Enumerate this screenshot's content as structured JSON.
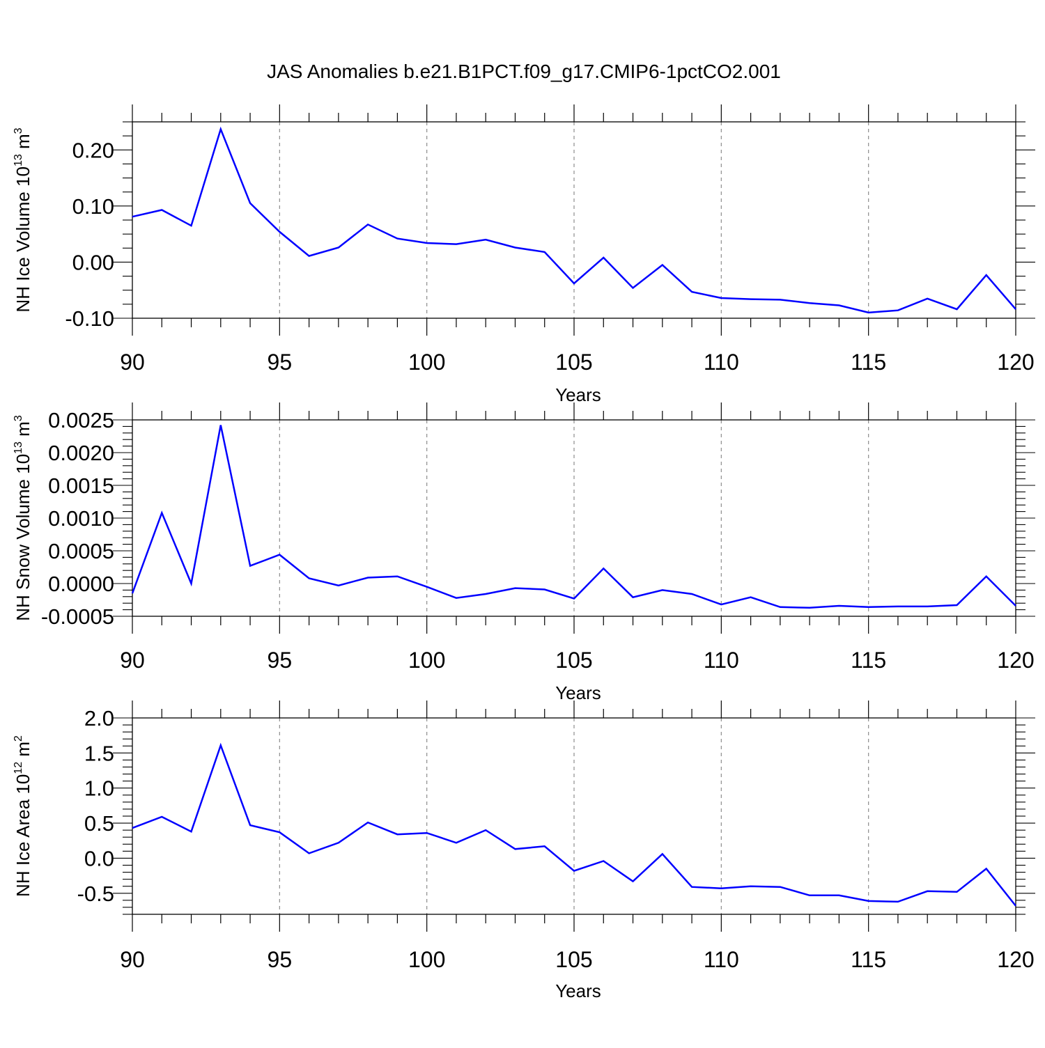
{
  "title": "JAS Anomalies b.e21.B1PCT.f09_g17.CMIP6-1pctCO2.001",
  "line_color": "#0000ff",
  "chart_data": [
    {
      "type": "line",
      "ylabel": "NH Ice Volume 10",
      "ylabel_sup": "13",
      "ylabel_unit": " m",
      "ylabel_unit_sup": "3",
      "xlabel": "Years",
      "xlim": [
        90,
        120
      ],
      "ylim": [
        -0.1,
        0.25
      ],
      "grid": "vertical-dashed",
      "x_ticks": [
        "90",
        "95",
        "100",
        "105",
        "110",
        "115",
        "120"
      ],
      "y_ticks": [
        "-0.10",
        "0.00",
        "0.10",
        "0.20"
      ],
      "x": [
        90,
        91,
        92,
        93,
        94,
        95,
        96,
        97,
        98,
        99,
        100,
        101,
        102,
        103,
        104,
        105,
        106,
        107,
        108,
        109,
        110,
        111,
        112,
        113,
        114,
        115,
        116,
        117,
        118,
        119,
        120
      ],
      "series": [
        {
          "values": [
            0.081,
            0.093,
            0.065,
            0.237,
            0.105,
            0.054,
            0.011,
            0.026,
            0.067,
            0.042,
            0.034,
            0.032,
            0.04,
            0.026,
            0.018,
            -0.038,
            0.008,
            -0.046,
            -0.005,
            -0.053,
            -0.064,
            -0.066,
            -0.067,
            -0.073,
            -0.077,
            -0.09,
            -0.086,
            -0.065,
            -0.084,
            -0.023,
            -0.084
          ]
        }
      ]
    },
    {
      "type": "line",
      "ylabel": "NH Snow Volume 10",
      "ylabel_sup": "13",
      "ylabel_unit": " m",
      "ylabel_unit_sup": "3",
      "xlabel": "Years",
      "xlim": [
        90,
        120
      ],
      "ylim": [
        -0.0005,
        0.0025
      ],
      "grid": "vertical-dashed",
      "x_ticks": [
        "90",
        "95",
        "100",
        "105",
        "110",
        "115",
        "120"
      ],
      "y_ticks": [
        "-0.0005",
        "0.0000",
        "0.0005",
        "0.0010",
        "0.0015",
        "0.0020",
        "0.0025"
      ],
      "x": [
        90,
        91,
        92,
        93,
        94,
        95,
        96,
        97,
        98,
        99,
        100,
        101,
        102,
        103,
        104,
        105,
        106,
        107,
        108,
        109,
        110,
        111,
        112,
        113,
        114,
        115,
        116,
        117,
        118,
        119,
        120
      ],
      "series": [
        {
          "values": [
            -0.00015,
            0.00108,
            0.0,
            0.00242,
            0.00027,
            0.00044,
            8e-05,
            -3e-05,
            9e-05,
            0.00011,
            -5e-05,
            -0.00022,
            -0.00016,
            -7e-05,
            -9e-05,
            -0.00023,
            0.00023,
            -0.00021,
            -0.0001,
            -0.00016,
            -0.00032,
            -0.00021,
            -0.00036,
            -0.00037,
            -0.00034,
            -0.00036,
            -0.00035,
            -0.00035,
            -0.00033,
            0.00011,
            -0.00034
          ]
        }
      ]
    },
    {
      "type": "line",
      "ylabel": "NH Ice Area 10",
      "ylabel_sup": "12",
      "ylabel_unit": " m",
      "ylabel_unit_sup": "2",
      "xlabel": "Years",
      "xlim": [
        90,
        120
      ],
      "ylim": [
        -0.8,
        2.0
      ],
      "grid": "vertical-dashed",
      "x_ticks": [
        "90",
        "95",
        "100",
        "105",
        "110",
        "115",
        "120"
      ],
      "y_ticks": [
        "-0.5",
        "0.0",
        "0.5",
        "1.0",
        "1.5",
        "2.0"
      ],
      "x": [
        90,
        91,
        92,
        93,
        94,
        95,
        96,
        97,
        98,
        99,
        100,
        101,
        102,
        103,
        104,
        105,
        106,
        107,
        108,
        109,
        110,
        111,
        112,
        113,
        114,
        115,
        116,
        117,
        118,
        119,
        120
      ],
      "series": [
        {
          "values": [
            0.43,
            0.59,
            0.38,
            1.61,
            0.47,
            0.37,
            0.07,
            0.22,
            0.51,
            0.34,
            0.36,
            0.22,
            0.4,
            0.13,
            0.17,
            -0.18,
            -0.04,
            -0.33,
            0.06,
            -0.41,
            -0.43,
            -0.4,
            -0.41,
            -0.53,
            -0.53,
            -0.61,
            -0.62,
            -0.47,
            -0.48,
            -0.15,
            -0.68
          ]
        }
      ]
    }
  ]
}
